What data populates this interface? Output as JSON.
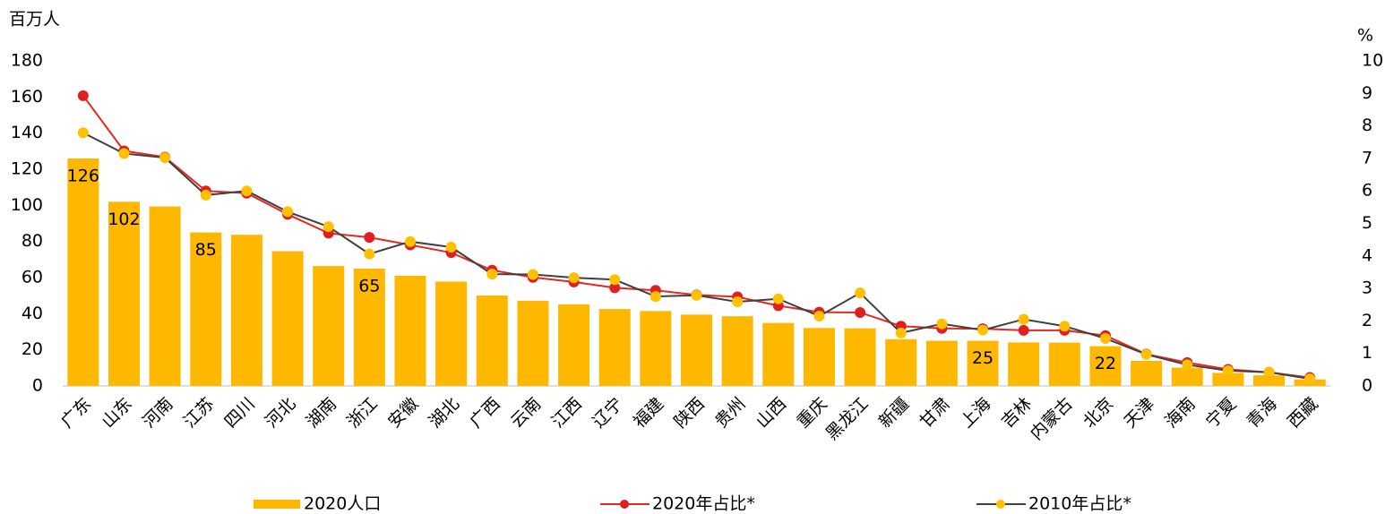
{
  "chart_data": {
    "type": "bar-line",
    "y_label": "百万人",
    "y2_label": "%",
    "categories": [
      "广东",
      "山东",
      "河南",
      "江苏",
      "四川",
      "河北",
      "湖南",
      "浙江",
      "安徽",
      "湖北",
      "广西",
      "云南",
      "江西",
      "辽宁",
      "福建",
      "陕西",
      "贵州",
      "山西",
      "重庆",
      "黑龙江",
      "新疆",
      "甘肃",
      "上海",
      "吉林",
      "内蒙古",
      "北京",
      "天津",
      "海南",
      "宁夏",
      "青海",
      "西藏"
    ],
    "series": [
      {
        "name": "2020人口",
        "type": "bar",
        "color": "#FFB800",
        "values": [
          126,
          102,
          99.4,
          85,
          83.7,
          74.6,
          66.4,
          65,
          61,
          57.8,
          50.1,
          47.2,
          45.2,
          42.6,
          41.5,
          39.5,
          38.6,
          34.9,
          32.1,
          31.9,
          25.9,
          25.0,
          25,
          24.1,
          24.0,
          22,
          13.9,
          10.1,
          7.2,
          5.9,
          3.6
        ],
        "value_labels": [
          "126",
          "102",
          null,
          "85",
          null,
          null,
          null,
          "65",
          null,
          null,
          null,
          null,
          null,
          null,
          null,
          null,
          null,
          null,
          null,
          null,
          null,
          null,
          "25",
          null,
          null,
          "22",
          null,
          null,
          null,
          null,
          null
        ]
      },
      {
        "name": "2020年占比*",
        "type": "line",
        "axis": "y2",
        "color": "#E8271F",
        "marker_color": "#E02020",
        "values": [
          8.93,
          7.23,
          7.04,
          6.0,
          5.93,
          5.28,
          4.7,
          4.57,
          4.34,
          4.1,
          3.56,
          3.34,
          3.2,
          3.02,
          2.94,
          2.8,
          2.74,
          2.47,
          2.27,
          2.26,
          1.84,
          1.77,
          1.76,
          1.71,
          1.71,
          1.55,
          0.98,
          0.72,
          0.51,
          0.42,
          0.26
        ]
      },
      {
        "name": "2010年占比*",
        "type": "line",
        "axis": "y2",
        "color": "#404040",
        "marker_color": "#FFC000",
        "values": [
          7.79,
          7.15,
          7.02,
          5.87,
          6.0,
          5.36,
          4.9,
          4.06,
          4.44,
          4.27,
          3.44,
          3.43,
          3.33,
          3.27,
          2.75,
          2.79,
          2.59,
          2.68,
          2.15,
          2.86,
          1.63,
          1.91,
          1.72,
          2.05,
          1.84,
          1.46,
          0.97,
          0.65,
          0.47,
          0.42,
          0.22
        ]
      }
    ],
    "ylim": [
      0,
      180
    ],
    "yticks": [
      0,
      20,
      40,
      60,
      80,
      100,
      120,
      140,
      160,
      180
    ],
    "y2lim": [
      0,
      10
    ],
    "y2ticks": [
      0,
      1,
      2,
      3,
      4,
      5,
      6,
      7,
      8,
      9,
      10
    ],
    "legend": "bottom"
  }
}
